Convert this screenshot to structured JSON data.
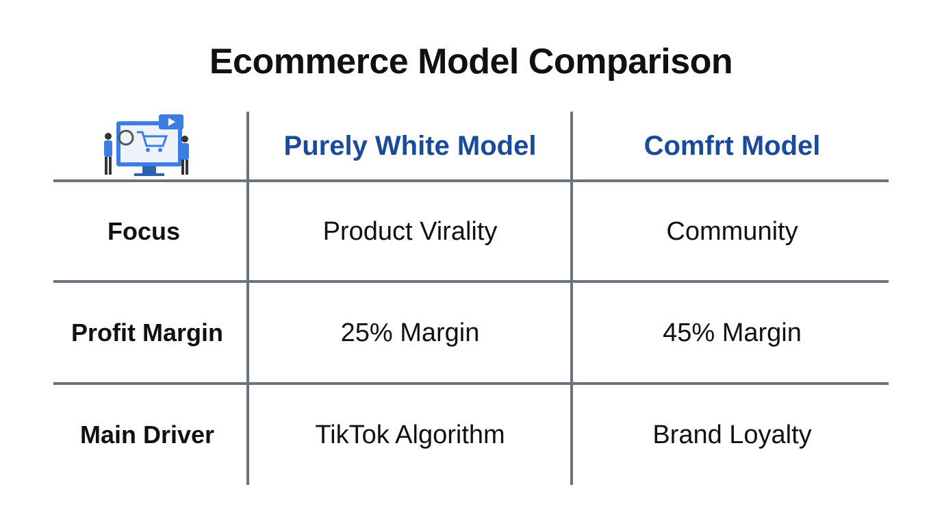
{
  "title": "Ecommerce Model Comparison",
  "table": {
    "header": [
      "Purely White Model",
      "Comfrt Model"
    ],
    "rows": [
      [
        "Focus",
        "Product Virality",
        "Community"
      ],
      [
        "Profit Margin",
        "25% Margin",
        "45% Margin"
      ],
      [
        "Main Driver",
        "TikTok Algorithm",
        "Brand Loyalty"
      ]
    ]
  }
}
